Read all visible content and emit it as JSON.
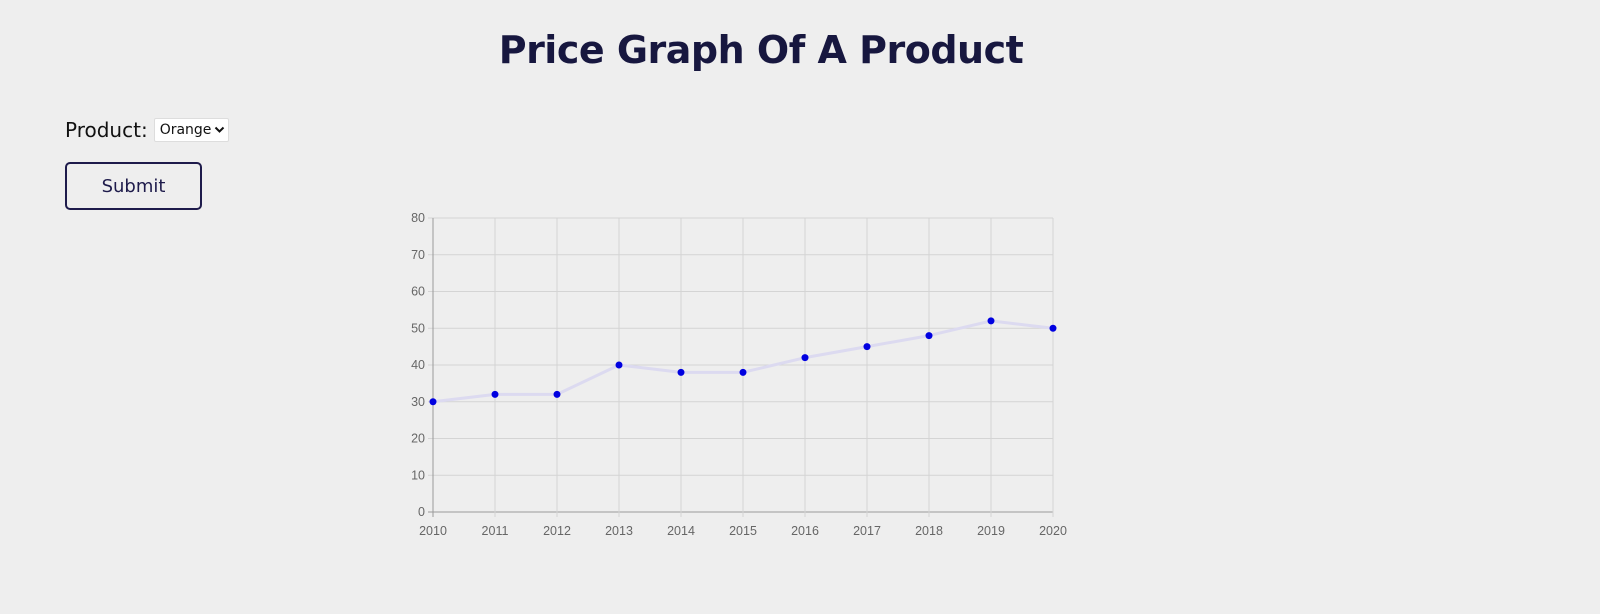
{
  "header": {
    "title": "Price Graph Of A Product"
  },
  "form": {
    "product_label": "Product:",
    "product_selected": "Orange",
    "submit_label": "Submit"
  },
  "colors": {
    "title": "#17173f",
    "button_border": "#1e1b4b",
    "point": "#0000e0",
    "line": "#dcdaf0",
    "grid": "#d4d4d4"
  },
  "chart_data": {
    "type": "line",
    "x": [
      2010,
      2011,
      2012,
      2013,
      2014,
      2015,
      2016,
      2017,
      2018,
      2019,
      2020
    ],
    "series": [
      {
        "values": [
          30,
          32,
          32,
          40,
          38,
          38,
          42,
          45,
          48,
          52,
          50
        ]
      }
    ],
    "yticks": [
      0,
      10,
      20,
      30,
      40,
      50,
      60,
      70,
      80
    ],
    "ylim": [
      0,
      80
    ],
    "xlim": [
      2010,
      2020
    ],
    "grid": true,
    "legend": "none"
  }
}
